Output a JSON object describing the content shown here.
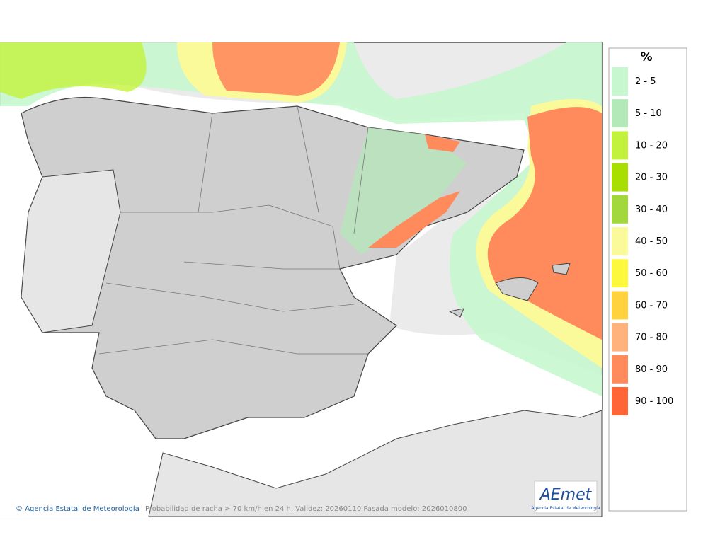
{
  "legend": {
    "title": "%",
    "items": [
      {
        "label": "2 - 5",
        "color": "#c6f7cf"
      },
      {
        "label": "5 - 10",
        "color": "#b3e8b8"
      },
      {
        "label": "10 - 20",
        "color": "#c3f23c"
      },
      {
        "label": "20 - 30",
        "color": "#a9df00"
      },
      {
        "label": "30 - 40",
        "color": "#a2d83c"
      },
      {
        "label": "40 - 50",
        "color": "#fbfa9a"
      },
      {
        "label": "50 - 60",
        "color": "#fbf83e"
      },
      {
        "label": "60 - 70",
        "color": "#ffd23e"
      },
      {
        "label": "70 - 80",
        "color": "#ffb27c"
      },
      {
        "label": "80 - 90",
        "color": "#ff8a5c"
      },
      {
        "label": "90 - 100",
        "color": "#ff6536"
      }
    ]
  },
  "credit": "Agencia Estatal de Meteorología",
  "caption": "Probabilidad de racha > 70 km/h en 24 h. Validez: 20260110 Pasada modelo: 2026010800",
  "logo": {
    "mark": "AEmet",
    "text": "Agencia Estatal de Meteorología"
  }
}
